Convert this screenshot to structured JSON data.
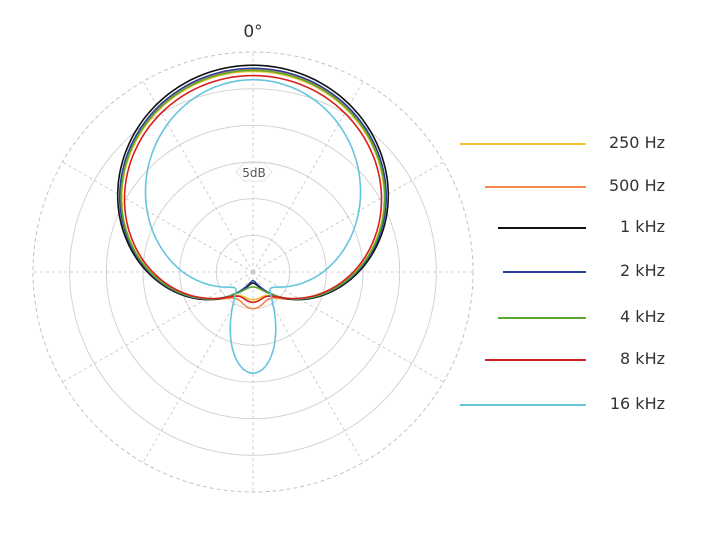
{
  "chart_data": {
    "type": "polar",
    "title": "",
    "angle_label": "0°",
    "scale_label": "5dB",
    "rings": 6,
    "series": [
      {
        "name": "250 Hz",
        "color": "#f2c12e",
        "shape": "cardioid",
        "back_ratio": 0.22
      },
      {
        "name": "500 Hz",
        "color": "#f08a4b",
        "shape": "cardioid",
        "back_ratio": 0.3
      },
      {
        "name": "1 kHz",
        "color": "#111111",
        "shape": "cardioid",
        "back_ratio": 0.06
      },
      {
        "name": "2 kHz",
        "color": "#2a3f9d",
        "shape": "cardioid",
        "back_ratio": 0.04
      },
      {
        "name": "4 kHz",
        "color": "#5aa832",
        "shape": "cardioid",
        "back_ratio": 0.1
      },
      {
        "name": "8 kHz",
        "color": "#d62020",
        "shape": "cardioid",
        "back_ratio": 0.25
      },
      {
        "name": "16 kHz",
        "color": "#66c5de",
        "shape": "narrow",
        "back_ratio": 0.45
      }
    ]
  }
}
